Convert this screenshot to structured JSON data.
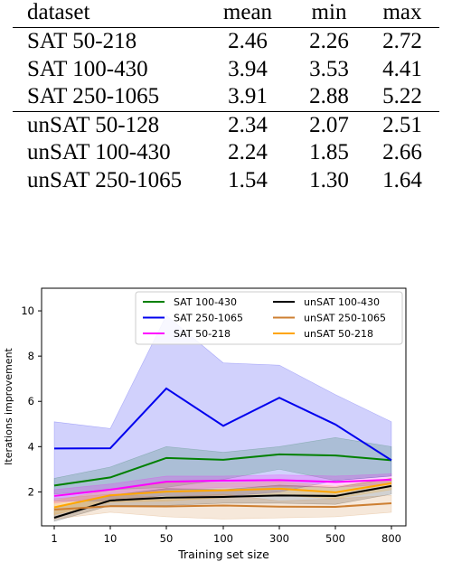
{
  "table": {
    "headers": [
      "dataset",
      "mean",
      "min",
      "max"
    ],
    "group_sat": [
      {
        "dataset": "SAT 50-218",
        "mean": "2.46",
        "min": "2.26",
        "max": "2.72"
      },
      {
        "dataset": "SAT 100-430",
        "mean": "3.94",
        "min": "3.53",
        "max": "4.41"
      },
      {
        "dataset": "SAT 250-1065",
        "mean": "3.91",
        "min": "2.88",
        "max": "5.22"
      }
    ],
    "group_unsat": [
      {
        "dataset": "unSAT 50-128",
        "mean": "2.34",
        "min": "2.07",
        "max": "2.51"
      },
      {
        "dataset": "unSAT 100-430",
        "mean": "2.24",
        "min": "1.85",
        "max": "2.66"
      },
      {
        "dataset": "unSAT 250-1065",
        "mean": "1.54",
        "min": "1.30",
        "max": "1.64"
      }
    ]
  },
  "chart_data": {
    "type": "line",
    "xlabel": "Training set size",
    "ylabel": "Iterations improvement",
    "x": [
      "1",
      "10",
      "50",
      "100",
      "300",
      "500",
      "800"
    ],
    "yticks": [
      2,
      4,
      6,
      8,
      10
    ],
    "ylim": [
      0.5,
      11
    ],
    "grid": false,
    "legend_position": "top",
    "series": [
      {
        "name": "SAT 100-430",
        "color": "#008000",
        "values": [
          2.28,
          2.64,
          3.5,
          3.42,
          3.66,
          3.61,
          3.4
        ],
        "lower": [
          1.9,
          2.1,
          2.2,
          2.55,
          3.0,
          2.5,
          2.7
        ],
        "upper": [
          2.6,
          3.1,
          4.0,
          3.75,
          4.0,
          4.4,
          4.0
        ]
      },
      {
        "name": "SAT 250-1065",
        "color": "#0000ee",
        "values": [
          3.92,
          3.93,
          6.57,
          4.92,
          6.16,
          4.98,
          3.4
        ],
        "lower": [
          1.6,
          1.6,
          1.85,
          1.8,
          2.0,
          2.5,
          2.7
        ],
        "upper": [
          5.1,
          4.8,
          9.8,
          7.7,
          7.6,
          6.3,
          5.1
        ]
      },
      {
        "name": "SAT 50-218",
        "color": "#ff00ff",
        "values": [
          1.82,
          2.1,
          2.45,
          2.5,
          2.52,
          2.44,
          2.54
        ],
        "lower": [
          1.5,
          1.8,
          2.1,
          2.2,
          2.25,
          2.2,
          2.35
        ],
        "upper": [
          2.1,
          2.35,
          2.7,
          2.7,
          2.75,
          2.7,
          2.8
        ]
      },
      {
        "name": "unSAT 100-430",
        "color": "#000000",
        "values": [
          0.86,
          1.62,
          1.75,
          1.78,
          1.84,
          1.82,
          2.26
        ],
        "lower": [
          0.7,
          1.4,
          1.4,
          1.5,
          1.5,
          1.45,
          1.9
        ],
        "upper": [
          1.3,
          1.85,
          2.15,
          2.1,
          2.3,
          2.2,
          2.6
        ]
      },
      {
        "name": "unSAT 250-1065",
        "color": "#cd7f32",
        "values": [
          1.22,
          1.37,
          1.36,
          1.4,
          1.35,
          1.34,
          1.5
        ],
        "lower": [
          0.8,
          1.1,
          0.9,
          0.8,
          0.85,
          0.9,
          1.1
        ],
        "upper": [
          1.7,
          1.9,
          1.75,
          1.9,
          1.6,
          1.7,
          1.85
        ]
      },
      {
        "name": "unSAT 50-218",
        "color": "#ffa500",
        "values": [
          1.32,
          1.85,
          2.01,
          2.07,
          2.14,
          1.98,
          2.38
        ],
        "lower": [
          1.0,
          1.55,
          1.6,
          1.75,
          1.85,
          1.7,
          2.1
        ],
        "upper": [
          1.6,
          2.1,
          2.4,
          2.4,
          2.45,
          2.25,
          2.6
        ]
      }
    ]
  }
}
